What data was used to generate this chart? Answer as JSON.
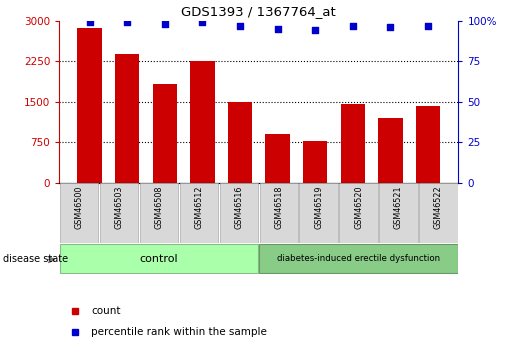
{
  "title": "GDS1393 / 1367764_at",
  "samples": [
    "GSM46500",
    "GSM46503",
    "GSM46508",
    "GSM46512",
    "GSM46516",
    "GSM46518",
    "GSM46519",
    "GSM46520",
    "GSM46521",
    "GSM46522"
  ],
  "counts": [
    2870,
    2380,
    1820,
    2250,
    1500,
    900,
    780,
    1460,
    1200,
    1430
  ],
  "percentile_ranks": [
    99,
    99,
    98,
    99,
    97,
    95,
    94,
    97,
    96,
    97
  ],
  "bar_color": "#cc0000",
  "dot_color": "#0000cc",
  "ylim_left": [
    0,
    3000
  ],
  "ylim_right": [
    0,
    100
  ],
  "yticks_left": [
    0,
    750,
    1500,
    2250,
    3000
  ],
  "yticks_right": [
    0,
    25,
    50,
    75,
    100
  ],
  "n_control": 5,
  "n_disease": 5,
  "control_label": "control",
  "disease_label": "diabetes-induced erectile dysfunction",
  "disease_state_label": "disease state",
  "legend_count_label": "count",
  "legend_percentile_label": "percentile rank within the sample",
  "control_bg": "#aaffaa",
  "disease_bg": "#88cc88",
  "bar_color_red": "#cc0000",
  "dot_color_blue": "#0000cc",
  "tick_bg": "#d8d8d8",
  "tick_border": "#aaaaaa"
}
